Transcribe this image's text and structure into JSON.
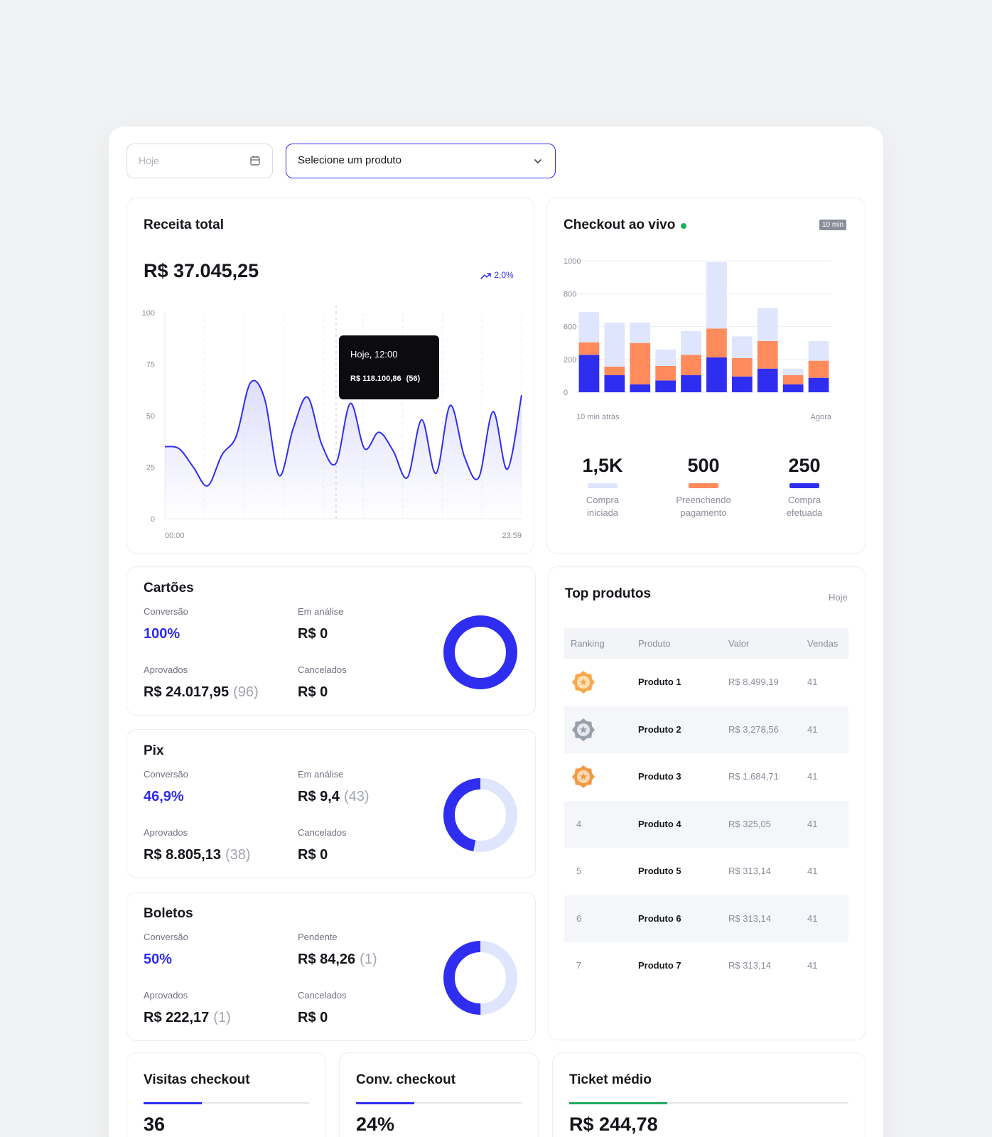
{
  "filters": {
    "date_placeholder": "Hoje",
    "product_select": "Selecione um produto"
  },
  "revenue": {
    "title": "Receita total",
    "total": "R$ 37.045,25",
    "trend": "2,0%",
    "tooltip": {
      "label": "Hoje, 12:00",
      "value": "R$ 118.100,86",
      "count": "(56)"
    },
    "colors": {
      "line": "#2f2ef0",
      "tooltip_bg": "#0b0b10"
    }
  },
  "revenue_chart": {
    "type": "area",
    "x_start_label": "00:00",
    "x_end_label": "23:59",
    "y_ticks": [
      "100",
      "75",
      "50",
      "25",
      "0"
    ],
    "ylim": [
      0,
      100
    ],
    "x": [
      0,
      0.04,
      0.08,
      0.12,
      0.16,
      0.2,
      0.24,
      0.28,
      0.32,
      0.36,
      0.4,
      0.44,
      0.48,
      0.52,
      0.56,
      0.6,
      0.64,
      0.68,
      0.72,
      0.76,
      0.8,
      0.84,
      0.88,
      0.92,
      0.96,
      1
    ],
    "values": [
      35,
      34,
      25,
      16,
      31,
      40,
      66,
      58,
      21,
      44,
      59,
      36,
      27,
      56,
      34,
      42,
      33,
      20,
      48,
      22,
      55,
      30,
      20,
      52,
      24,
      60
    ]
  },
  "checkout": {
    "title": "Checkout ao vivo",
    "badge": "10 min",
    "x_start_label": "10 min atrás",
    "x_end_label": "Agora",
    "stats": [
      {
        "value": "1,5K",
        "label_line1": "Compra",
        "label_line2": "iniciada",
        "color": "#dfe5fc"
      },
      {
        "value": "500",
        "label_line1": "Preenchendo",
        "label_line2": "pagamento",
        "color": "#ff8a5c"
      },
      {
        "value": "250",
        "label_line1": "Compra",
        "label_line2": "efetuada",
        "color": "#2f2ef0"
      }
    ]
  },
  "checkout_chart": {
    "type": "bar",
    "stacked": true,
    "y_ticks": [
      "1000",
      "800",
      "600",
      "200",
      "0"
    ],
    "ylim": [
      0,
      1000
    ],
    "series": [
      {
        "values": [
          285,
          130,
          60,
          90,
          130,
          265,
          120,
          180,
          60,
          110
        ],
        "color": "#2f2ef0"
      },
      {
        "values": [
          95,
          65,
          315,
          110,
          155,
          220,
          140,
          210,
          70,
          130
        ],
        "color": "#ff8a5c"
      },
      {
        "values": [
          230,
          335,
          155,
          125,
          180,
          505,
          165,
          250,
          50,
          150
        ],
        "color": "#dfe5fc"
      }
    ]
  },
  "payments": [
    {
      "title": "Cartões",
      "conv_label": "Conversão",
      "conv_value": "100%",
      "second_label": "Em análise",
      "second_value": "R$ 0",
      "second_count": "",
      "approved_label": "Aprovados",
      "approved_value": "R$ 24.017,95",
      "approved_count": "(96)",
      "cancel_label": "Cancelados",
      "cancel_value": "R$ 0",
      "donut_fraction": 1.0
    },
    {
      "title": "Pix",
      "conv_label": "Conversão",
      "conv_value": "46,9%",
      "second_label": "Em análise",
      "second_value": "R$ 9,4",
      "second_count": "(43)",
      "approved_label": "Aprovados",
      "approved_value": "R$ 8.805,13",
      "approved_count": "(38)",
      "cancel_label": "Cancelados",
      "cancel_value": "R$ 0",
      "donut_fraction": 0.469
    },
    {
      "title": "Boletos",
      "conv_label": "Conversão",
      "conv_value": "50%",
      "second_label": "Pendente",
      "second_value": "R$ 84,26",
      "second_count": "(1)",
      "approved_label": "Aprovados",
      "approved_value": "R$ 222,17",
      "approved_count": "(1)",
      "cancel_label": "Cancelados",
      "cancel_value": "R$ 0",
      "donut_fraction": 0.5
    }
  ],
  "top_products": {
    "title": "Top produtos",
    "period": "Hoje",
    "columns": [
      "Ranking",
      "Produto",
      "Valor",
      "Vendas"
    ],
    "rows": [
      {
        "rank": "1",
        "medal": "gold-medal-icon",
        "product": "Produto 1",
        "value": "R$ 8.499,19",
        "sales": "41"
      },
      {
        "rank": "2",
        "medal": "silver-medal-icon",
        "product": "Produto 2",
        "value": "R$ 3.278,56",
        "sales": "41"
      },
      {
        "rank": "3",
        "medal": "bronze-medal-icon",
        "product": "Produto 3",
        "value": "R$ 1.684,71",
        "sales": "41"
      },
      {
        "rank": "4",
        "medal": "",
        "product": "Produto 4",
        "value": "R$ 325,05",
        "sales": "41"
      },
      {
        "rank": "5",
        "medal": "",
        "product": "Produto 5",
        "value": "R$ 313,14",
        "sales": "41"
      },
      {
        "rank": "6",
        "medal": "",
        "product": "Produto 6",
        "value": "R$ 313,14",
        "sales": "41"
      },
      {
        "rank": "7",
        "medal": "",
        "product": "Produto 7",
        "value": "R$ 313,14",
        "sales": "41"
      }
    ]
  },
  "kpis": [
    {
      "title": "Visitas checkout",
      "value": "36",
      "progress": 0.35,
      "color": "#2f2ef0"
    },
    {
      "title": "Conv. checkout",
      "value": "24%",
      "progress": 0.35,
      "color": "#2f2ef0"
    },
    {
      "title": "Ticket médio",
      "value": "R$ 244,78",
      "progress": 0.35,
      "color": "#1faa5e"
    }
  ]
}
